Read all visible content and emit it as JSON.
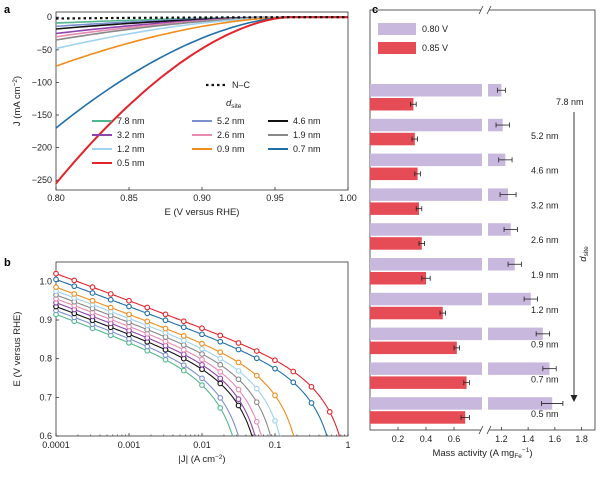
{
  "chart_data": [
    {
      "panel": "a",
      "type": "line",
      "xlabel": "E (V versus RHE)",
      "ylabel_main": "J (mA cm",
      "ylabel_sup": "−2",
      "ylabel_close": ")",
      "xlim": [
        0.8,
        1.0
      ],
      "ylim": [
        -265,
        8
      ],
      "xticks": [
        0.8,
        0.85,
        0.9,
        0.95,
        1.0
      ],
      "xtick_labels": [
        "0.80",
        "0.85",
        "0.90",
        "0.95",
        "1.00"
      ],
      "yticks": [
        0,
        -50,
        -100,
        -150,
        -200,
        -250
      ],
      "ytick_labels": [
        "0",
        "−50",
        "−100",
        "−150",
        "−200",
        "−250"
      ],
      "legend_ref": "N–C",
      "legend_title_main": "d",
      "legend_title_sub": "site",
      "reference_series": {
        "name": "N–C",
        "color": "#111111",
        "x": [
          0.8,
          0.85,
          0.9,
          0.95,
          1.0
        ],
        "y": [
          -2,
          -1,
          -0.5,
          0,
          0
        ]
      },
      "series": [
        {
          "name": "7.8 nm",
          "color": "#52b68d",
          "j_at_080": -9
        },
        {
          "name": "5.2 nm",
          "color": "#7c8fd1",
          "j_at_080": -14
        },
        {
          "name": "4.6 nm",
          "color": "#111111",
          "j_at_080": -18
        },
        {
          "name": "3.2 nm",
          "color": "#8e44ad",
          "j_at_080": -25
        },
        {
          "name": "2.6 nm",
          "color": "#e88ab1",
          "j_at_080": -30
        },
        {
          "name": "1.9 nm",
          "color": "#888888",
          "j_at_080": -35
        },
        {
          "name": "1.2 nm",
          "color": "#9fd3ee",
          "j_at_080": -48
        },
        {
          "name": "0.9 nm",
          "color": "#f08c1a",
          "j_at_080": -75
        },
        {
          "name": "0.7 nm",
          "color": "#1f6fa8",
          "j_at_080": -170
        },
        {
          "name": "0.5 nm",
          "color": "#e3242b",
          "j_at_080": -255
        }
      ],
      "curve_shape": {
        "e_zero": 0.96,
        "exponent": 1.7
      }
    },
    {
      "panel": "b",
      "type": "line",
      "xscale": "log",
      "xlabel": "|J| (A cm",
      "xlabel_sup": "−2",
      "xlabel_close": ")",
      "ylabel": "E (V versus RHE)",
      "xlim": [
        0.0001,
        1
      ],
      "ylim": [
        0.6,
        1.05
      ],
      "xticks": [
        0.0001,
        0.001,
        0.01,
        0.1,
        1
      ],
      "xtick_labels": [
        "0.0001",
        "0.001",
        "0.01",
        "0.1",
        "1"
      ],
      "yticks": [
        0.6,
        0.7,
        0.8,
        0.9,
        1.0
      ],
      "ytick_labels": [
        "0.6",
        "0.7",
        "0.8",
        "0.9",
        "1.0"
      ],
      "series": [
        {
          "name": "7.8 nm",
          "color": "#52b68d",
          "e0": 0.915,
          "jlim": 0.038
        },
        {
          "name": "5.2 nm",
          "color": "#7c8fd1",
          "e0": 0.925,
          "jlim": 0.045
        },
        {
          "name": "4.6 nm",
          "color": "#111111",
          "e0": 0.935,
          "jlim": 0.07
        },
        {
          "name": "3.2 nm",
          "color": "#8e44ad",
          "e0": 0.945,
          "jlim": 0.075
        },
        {
          "name": "2.6 nm",
          "color": "#e88ab1",
          "e0": 0.955,
          "jlim": 0.09
        },
        {
          "name": "1.9 nm",
          "color": "#888888",
          "e0": 0.965,
          "jlim": 0.12
        },
        {
          "name": "1.2 nm",
          "color": "#9fd3ee",
          "e0": 0.975,
          "jlim": 0.16
        },
        {
          "name": "0.9 nm",
          "color": "#f08c1a",
          "e0": 0.985,
          "jlim": 0.25
        },
        {
          "name": "0.7 nm",
          "color": "#1f6fa8",
          "e0": 1.005,
          "jlim": 0.75
        },
        {
          "name": "0.5 nm",
          "color": "#e3242b",
          "e0": 1.02,
          "jlim": 1.1
        }
      ]
    },
    {
      "panel": "c",
      "type": "bar",
      "orientation": "horizontal",
      "xlabel_main": "Mass activity (A mg",
      "xlabel_sub": "Fe",
      "xlabel_sup": "−1",
      "xlabel_close": ")",
      "broken_axis": [
        0.8,
        1.1
      ],
      "xticks": [
        0.2,
        0.4,
        0.6,
        1.2,
        1.4,
        1.6,
        1.8
      ],
      "xtick_labels": [
        "0.2",
        "0.4",
        "0.6",
        "1.2",
        "1.4",
        "1.6",
        "1.8"
      ],
      "axis_annotation_main": "d",
      "axis_annotation_sub": "site",
      "categories": [
        "7.8 nm",
        "5.2 nm",
        "4.6 nm",
        "3.2 nm",
        "2.6 nm",
        "1.9 nm",
        "1.2 nm",
        "0.9 nm",
        "0.7 nm",
        "0.5 nm"
      ],
      "series": [
        {
          "name": "0.80 V",
          "color": "#c9b8de",
          "values": [
            1.2,
            1.21,
            1.23,
            1.25,
            1.27,
            1.3,
            1.42,
            1.51,
            1.56,
            1.58
          ],
          "errors": [
            0.03,
            0.05,
            0.05,
            0.06,
            0.05,
            0.05,
            0.05,
            0.05,
            0.05,
            0.08
          ]
        },
        {
          "name": "0.85 V",
          "color": "#e64c55",
          "values": [
            0.31,
            0.32,
            0.34,
            0.35,
            0.37,
            0.4,
            0.52,
            0.62,
            0.69,
            0.68
          ],
          "errors": [
            0.02,
            0.02,
            0.02,
            0.02,
            0.02,
            0.03,
            0.02,
            0.02,
            0.02,
            0.03
          ]
        }
      ]
    }
  ]
}
